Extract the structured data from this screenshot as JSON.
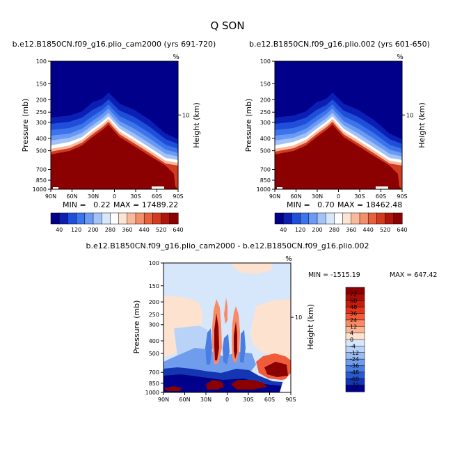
{
  "figure": {
    "title": "Q SON",
    "top_left_title": "b.e12.B1850CN.f09_g16.plio_cam2000 (yrs 691-720)",
    "top_right_title": "b.e12.B1850CN.f09_g16.plio.002 (yrs 601-650)",
    "diff_title": "b.e12.B1850CN.f09_g16.plio_cam2000 - b.e12.B1850CN.f09_g16.plio.002",
    "corner_mark": "%"
  },
  "chart_data": [
    {
      "id": "top_left",
      "type": "heatmap",
      "title": "b.e12.B1850CN.f09_g16.plio_cam2000 (yrs 691-720)",
      "xlabel": "",
      "ylabel": "Pressure (mb)",
      "right_label": "Height (km)",
      "x_ticks": [
        "90N",
        "60N",
        "30N",
        "0",
        "30S",
        "60S",
        "90S"
      ],
      "y_ticks": [
        "100",
        "150",
        "200",
        "250",
        "300",
        "400",
        "500",
        "700",
        "850",
        "1000"
      ],
      "y_tick_values": [
        100,
        150,
        200,
        250,
        300,
        400,
        500,
        700,
        850,
        1000
      ],
      "right_ticks": [
        "10"
      ],
      "xlim": [
        90,
        -90
      ],
      "ylim": [
        1000,
        100
      ],
      "log_y": true,
      "min_text": "MIN =   0.22",
      "max_text": "MAX = 17489.22",
      "min": 0.22,
      "max": 17489.22,
      "colorbar_labels": [
        "40",
        "120",
        "200",
        "280",
        "360",
        "440",
        "520",
        "640"
      ]
    },
    {
      "id": "top_right",
      "type": "heatmap",
      "title": "b.e12.B1850CN.f09_g16.plio.002 (yrs 601-650)",
      "xlabel": "",
      "ylabel": "Pressure (mb)",
      "right_label": "Height (km)",
      "x_ticks": [
        "90N",
        "60N",
        "30N",
        "0",
        "30S",
        "60S",
        "90S"
      ],
      "y_ticks": [
        "100",
        "150",
        "200",
        "250",
        "300",
        "400",
        "500",
        "700",
        "850",
        "1000"
      ],
      "y_tick_values": [
        100,
        150,
        200,
        250,
        300,
        400,
        500,
        700,
        850,
        1000
      ],
      "right_ticks": [
        "10"
      ],
      "xlim": [
        90,
        -90
      ],
      "ylim": [
        1000,
        100
      ],
      "log_y": true,
      "min_text": "MIN =   0.70",
      "max_text": "MAX = 18462.48",
      "min": 0.7,
      "max": 18462.48,
      "colorbar_labels": [
        "40",
        "120",
        "200",
        "280",
        "360",
        "440",
        "520",
        "640"
      ]
    },
    {
      "id": "difference",
      "type": "heatmap",
      "title": "b.e12.B1850CN.f09_g16.plio_cam2000 - b.e12.B1850CN.f09_g16.plio.002",
      "xlabel": "",
      "ylabel": "Pressure (mb)",
      "right_label": "Height (km)",
      "x_ticks": [
        "90N",
        "60N",
        "30N",
        "0",
        "30S",
        "60S",
        "90S"
      ],
      "y_ticks": [
        "100",
        "150",
        "200",
        "250",
        "300",
        "400",
        "500",
        "700",
        "850",
        "1000"
      ],
      "y_tick_values": [
        100,
        150,
        200,
        250,
        300,
        400,
        500,
        700,
        850,
        1000
      ],
      "right_ticks": [
        "10"
      ],
      "xlim": [
        90,
        -90
      ],
      "ylim": [
        1000,
        100
      ],
      "log_y": true,
      "min_text": "MIN = -1515.19",
      "max_text": "MAX = 647.42",
      "min": -1515.19,
      "max": 647.42,
      "colorbar_labels": [
        "72",
        "60",
        "48",
        "36",
        "24",
        "12",
        "4",
        "0",
        "-4",
        "-12",
        "-24",
        "-36",
        "-48",
        "-60",
        "-72"
      ]
    }
  ],
  "colors": {
    "abs_scale": [
      "#00008b",
      "#0b1fb4",
      "#1f4fd8",
      "#3c74ec",
      "#6a9af4",
      "#a2c2f8",
      "#d6e6fb",
      "#ffffff",
      "#fde4d2",
      "#f9b99b",
      "#f48f6c",
      "#e8613f",
      "#d23b1f",
      "#b11509",
      "#8b0000"
    ],
    "diff_scale": [
      "#8b0000",
      "#a80e06",
      "#c51d0c",
      "#e0351a",
      "#f05c3a",
      "#f88a66",
      "#fbb596",
      "#fde2cf",
      "#d6e6fb",
      "#b9d3f8",
      "#98bbf3",
      "#6f9cec",
      "#4a7de1",
      "#2b59cf",
      "#1436b3",
      "#00008b"
    ]
  }
}
